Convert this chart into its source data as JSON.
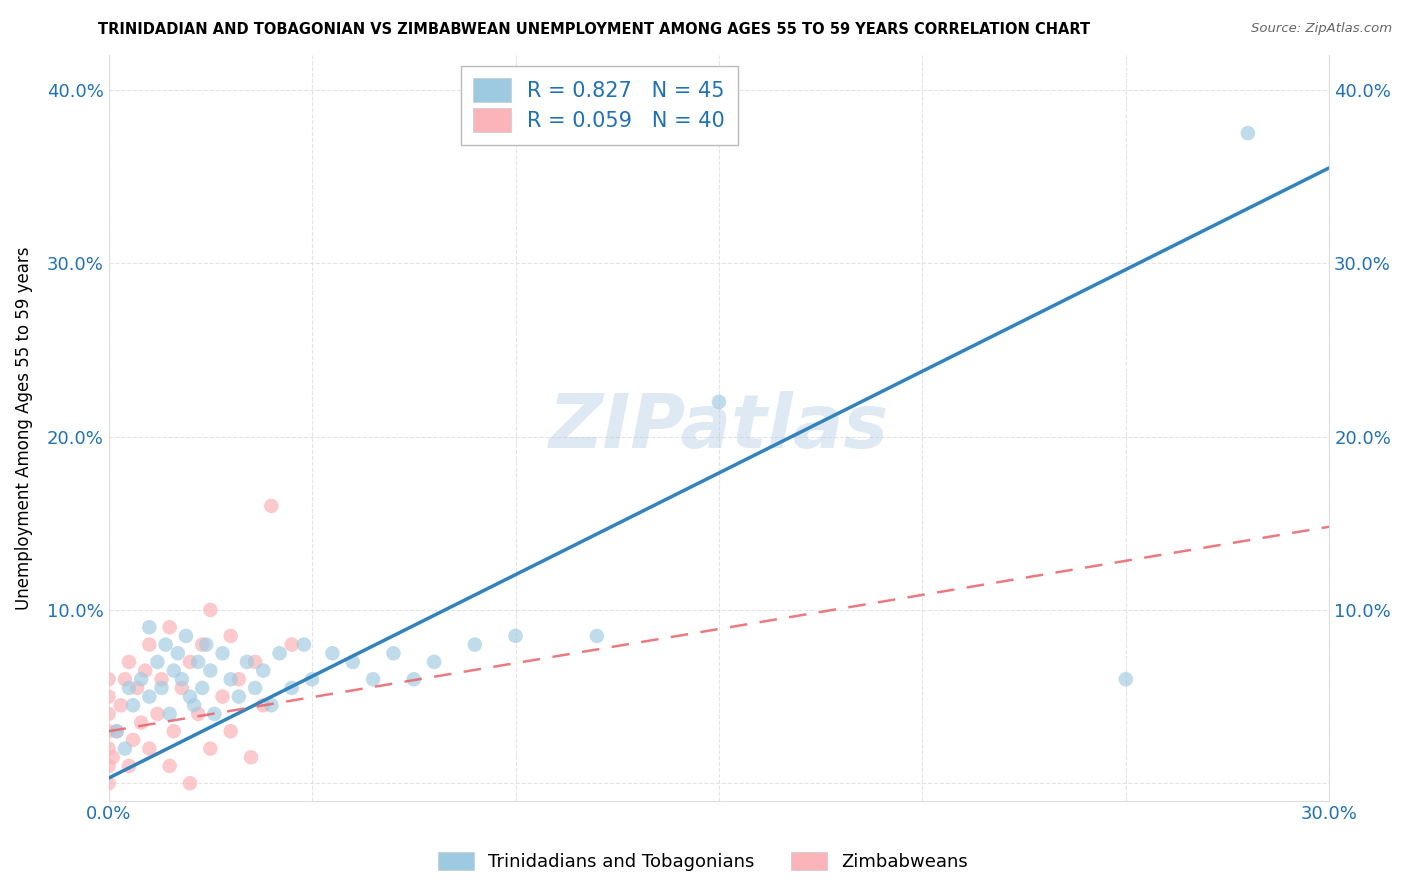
{
  "title": "TRINIDADIAN AND TOBAGONIAN VS ZIMBABWEAN UNEMPLOYMENT AMONG AGES 55 TO 59 YEARS CORRELATION CHART",
  "source": "Source: ZipAtlas.com",
  "ylabel": "Unemployment Among Ages 55 to 59 years",
  "xlim": [
    0.0,
    0.3
  ],
  "ylim": [
    -0.01,
    0.42
  ],
  "xticks": [
    0.0,
    0.05,
    0.1,
    0.15,
    0.2,
    0.25,
    0.3
  ],
  "yticks": [
    0.0,
    0.1,
    0.2,
    0.3,
    0.4
  ],
  "blue_R": 0.827,
  "blue_N": 45,
  "pink_R": 0.059,
  "pink_N": 40,
  "blue_color": "#9ecae1",
  "pink_color": "#fbb4b9",
  "blue_line_color": "#3182bd",
  "pink_line_color": "#e8636a",
  "watermark": "ZIPatlas",
  "legend_label_blue": "Trinidadians and Tobagonians",
  "legend_label_pink": "Zimbabweans",
  "blue_scatter_x": [
    0.002,
    0.004,
    0.005,
    0.006,
    0.008,
    0.01,
    0.01,
    0.012,
    0.013,
    0.014,
    0.015,
    0.016,
    0.017,
    0.018,
    0.019,
    0.02,
    0.021,
    0.022,
    0.023,
    0.024,
    0.025,
    0.026,
    0.028,
    0.03,
    0.032,
    0.034,
    0.036,
    0.038,
    0.04,
    0.042,
    0.045,
    0.048,
    0.05,
    0.055,
    0.06,
    0.065,
    0.07,
    0.075,
    0.08,
    0.09,
    0.1,
    0.12,
    0.15,
    0.25,
    0.28
  ],
  "blue_scatter_y": [
    0.03,
    0.02,
    0.055,
    0.045,
    0.06,
    0.05,
    0.09,
    0.07,
    0.055,
    0.08,
    0.04,
    0.065,
    0.075,
    0.06,
    0.085,
    0.05,
    0.045,
    0.07,
    0.055,
    0.08,
    0.065,
    0.04,
    0.075,
    0.06,
    0.05,
    0.07,
    0.055,
    0.065,
    0.045,
    0.075,
    0.055,
    0.08,
    0.06,
    0.075,
    0.07,
    0.06,
    0.075,
    0.06,
    0.07,
    0.08,
    0.085,
    0.085,
    0.22,
    0.06,
    0.375
  ],
  "pink_scatter_x": [
    0.0,
    0.0,
    0.0,
    0.0,
    0.0,
    0.0,
    0.0,
    0.001,
    0.002,
    0.003,
    0.004,
    0.005,
    0.005,
    0.006,
    0.007,
    0.008,
    0.009,
    0.01,
    0.01,
    0.012,
    0.013,
    0.015,
    0.015,
    0.016,
    0.018,
    0.02,
    0.02,
    0.022,
    0.023,
    0.025,
    0.025,
    0.028,
    0.03,
    0.03,
    0.032,
    0.035,
    0.036,
    0.038,
    0.04,
    0.045
  ],
  "pink_scatter_y": [
    0.0,
    0.01,
    0.02,
    0.03,
    0.04,
    0.05,
    0.06,
    0.015,
    0.03,
    0.045,
    0.06,
    0.01,
    0.07,
    0.025,
    0.055,
    0.035,
    0.065,
    0.02,
    0.08,
    0.04,
    0.06,
    0.01,
    0.09,
    0.03,
    0.055,
    0.0,
    0.07,
    0.04,
    0.08,
    0.02,
    0.1,
    0.05,
    0.03,
    0.085,
    0.06,
    0.015,
    0.07,
    0.045,
    0.16,
    0.08
  ],
  "blue_line_x": [
    0.0,
    0.3
  ],
  "blue_line_y": [
    0.003,
    0.355
  ],
  "pink_line_x": [
    0.0,
    0.3
  ],
  "pink_line_y": [
    0.03,
    0.148
  ]
}
